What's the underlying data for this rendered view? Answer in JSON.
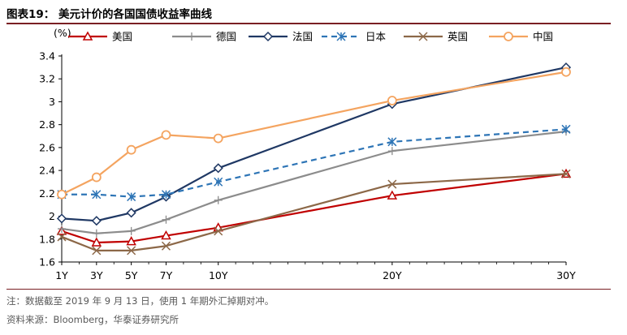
{
  "title": "图表19：  美元计价的各国国债收益率曲线",
  "note": "注：数据截至 2019 年 9 月 13 日，使用 1 年期外汇掉期对冲。",
  "source": "资料来源：Bloomberg，华泰证券研究所",
  "chart_data": {
    "type": "line",
    "ylabel": "(%)",
    "x": [
      1,
      3,
      5,
      7,
      10,
      20,
      30
    ],
    "x_tick_labels": [
      "1Y",
      "3Y",
      "5Y",
      "7Y",
      "10Y",
      "20Y",
      "30Y"
    ],
    "ylim": [
      1.6,
      3.4
    ],
    "y_ticks": [
      1.6,
      1.8,
      2.0,
      2.2,
      2.4,
      2.6,
      2.8,
      3.0,
      3.2,
      3.4
    ],
    "y_tick_labels": [
      "1.6",
      "1.8",
      "2",
      "2.2",
      "2.4",
      "2.6",
      "2.8",
      "3",
      "3.2",
      "3.4"
    ],
    "legend_position": "top",
    "grid": false,
    "series": [
      {
        "name": "美国",
        "color": "#c00000",
        "marker": "triangle",
        "dash": "solid",
        "values": [
          1.87,
          1.77,
          1.78,
          1.83,
          1.9,
          2.18,
          2.37
        ]
      },
      {
        "name": "德国",
        "color": "#8c8c8c",
        "marker": "plus",
        "dash": "solid",
        "values": [
          1.89,
          1.85,
          1.87,
          1.97,
          2.14,
          2.57,
          2.74
        ]
      },
      {
        "name": "法国",
        "color": "#1f3864",
        "marker": "diamond",
        "dash": "solid",
        "values": [
          1.98,
          1.96,
          2.03,
          2.17,
          2.42,
          2.98,
          3.3
        ]
      },
      {
        "name": "日本",
        "color": "#2e75b6",
        "marker": "star",
        "dash": "dashed",
        "values": [
          2.19,
          2.19,
          2.17,
          2.19,
          2.3,
          2.65,
          2.76
        ]
      },
      {
        "name": "英国",
        "color": "#8c6848",
        "marker": "x",
        "dash": "solid",
        "values": [
          1.82,
          1.7,
          1.7,
          1.74,
          1.87,
          2.28,
          2.37
        ]
      },
      {
        "name": "中国",
        "color": "#f4a460",
        "marker": "circle",
        "dash": "solid",
        "values": [
          2.19,
          2.34,
          2.58,
          2.71,
          2.68,
          3.01,
          3.26
        ]
      }
    ]
  }
}
